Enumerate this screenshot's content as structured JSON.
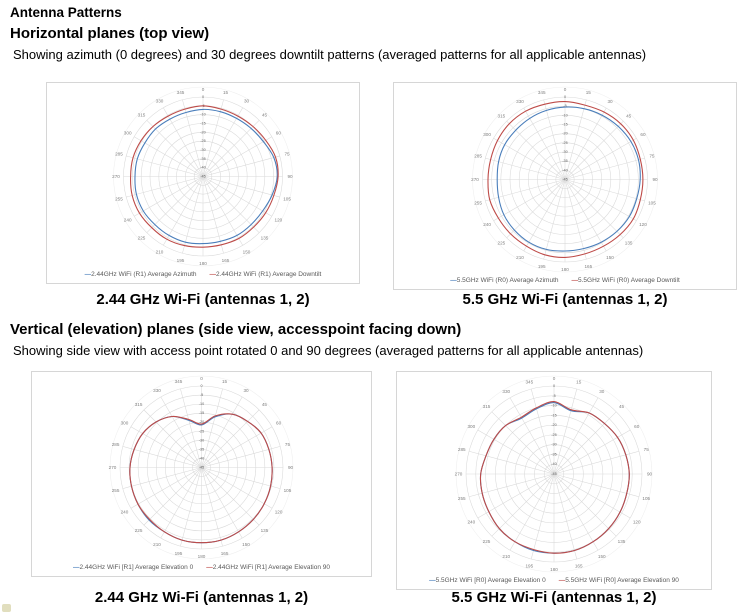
{
  "document_title": "Antenna Patterns",
  "sections": [
    {
      "heading": "Horizontal planes (top view)",
      "description": "Showing azimuth (0 degrees) and 30 degrees downtilt patterns (averaged patterns for all applicable antennas)",
      "captions": [
        "2.44 GHz Wi-Fi (antennas 1, 2)",
        "5.5 GHz Wi-Fi (antennas 1, 2)"
      ]
    },
    {
      "heading": "Vertical (elevation) planes (side view, accesspoint facing down)",
      "description": "Showing side view with access point rotated 0 and 90 degrees (averaged patterns for all applicable antennas)",
      "captions": [
        "2.44 GHz Wi-Fi (antennas 1, 2)",
        "5.5 GHz Wi-Fi (antennas 1, 2)"
      ]
    }
  ],
  "colors": {
    "series_blue": "#4a7ebb",
    "series_red": "#be4b48",
    "grid": "#d9d9d9",
    "outer_ring": "#efefef",
    "axis_text": "#808080",
    "radial_text": "#666666",
    "legend_text": "#595959",
    "box_border": "#d6d6d6",
    "corner_artifact": "#d9d6ae"
  },
  "chart_data": [
    {
      "type": "line",
      "subtype": "polar-radar",
      "position": "horizontal-2.44GHz",
      "angular_tick_step_deg": 15,
      "angles_deg": [
        0,
        15,
        30,
        45,
        60,
        75,
        90,
        105,
        120,
        135,
        150,
        165,
        180,
        195,
        210,
        225,
        240,
        255,
        270,
        285,
        300,
        315,
        330,
        345
      ],
      "radial_axis": {
        "min_db": -45,
        "max_db": 0,
        "ring_step_db": 5
      },
      "legend_position": "bottom",
      "series": [
        {
          "name": "2.44GHz WiFi (R1) Average Azimuth",
          "color": "#4a7ebb",
          "values_db": [
            -7,
            -7,
            -7,
            -6.5,
            -5.5,
            -3.5,
            -3,
            -4.5,
            -6,
            -6.5,
            -6.5,
            -7,
            -7,
            -6.5,
            -6.5,
            -6.5,
            -6,
            -6,
            -6.5,
            -6.5,
            -7,
            -7,
            -7.5,
            -7.5
          ]
        },
        {
          "name": "2.44GHz WiFi (R1) Average Downtilt",
          "color": "#be4b48",
          "values_db": [
            -5,
            -5.5,
            -5.5,
            -5,
            -4,
            -2.5,
            -2.5,
            -3.5,
            -4,
            -4.5,
            -4.5,
            -5,
            -5,
            -4.5,
            -4,
            -4,
            -3.5,
            -3.5,
            -4,
            -4,
            -4.5,
            -5,
            -5.5,
            -5.5
          ]
        }
      ]
    },
    {
      "type": "line",
      "subtype": "polar-radar",
      "position": "horizontal-5.5GHz",
      "angular_tick_step_deg": 15,
      "angles_deg": [
        0,
        15,
        30,
        45,
        60,
        75,
        90,
        105,
        120,
        135,
        150,
        165,
        180,
        195,
        210,
        225,
        240,
        255,
        270,
        285,
        300,
        315,
        330,
        345
      ],
      "radial_axis": {
        "min_db": -45,
        "max_db": 0,
        "ring_step_db": 5
      },
      "legend_position": "bottom",
      "series": [
        {
          "name": "5.5GHz WiFi (R0) Average Azimuth",
          "color": "#4a7ebb",
          "values_db": [
            -5.5,
            -5,
            -4.5,
            -4,
            -3.5,
            -3.5,
            -4,
            -4.5,
            -4.5,
            -5,
            -5.5,
            -6,
            -6,
            -5.5,
            -5.5,
            -6,
            -6.5,
            -7.5,
            -8,
            -7.5,
            -7,
            -7,
            -6.5,
            -6
          ]
        },
        {
          "name": "5.5GHz WiFi (R0) Average Downtilt",
          "color": "#be4b48",
          "values_db": [
            -2.5,
            -3,
            -2.5,
            -2,
            -2,
            -2.5,
            -2.5,
            -2.5,
            -2,
            -2.5,
            -3,
            -3,
            -2.5,
            -2.5,
            -3,
            -3,
            -3,
            -2.5,
            -3,
            -3,
            -2.5,
            -2,
            -2,
            -2.5
          ]
        }
      ]
    },
    {
      "type": "line",
      "subtype": "polar-radar",
      "position": "vertical-2.44GHz",
      "angular_tick_step_deg": 15,
      "angles_deg": [
        0,
        15,
        30,
        45,
        60,
        75,
        90,
        105,
        120,
        135,
        150,
        165,
        180,
        195,
        210,
        225,
        240,
        255,
        270,
        285,
        300,
        315,
        330,
        345
      ],
      "radial_axis": {
        "min_db": -45,
        "max_db": 0,
        "ring_step_db": 5
      },
      "legend_position": "bottom",
      "series": [
        {
          "name": "2.44GHz WiFi [R1] Average Elevation 0",
          "color": "#4a7ebb",
          "values_db": [
            -21.5,
            -16,
            -11,
            -9,
            -7,
            -6.5,
            -6,
            -5.5,
            -5,
            -4.5,
            -4,
            -3.5,
            -3.5,
            -3.5,
            -4,
            -4,
            -4.5,
            -5,
            -5.5,
            -6.5,
            -7.5,
            -9.5,
            -12.5,
            -18
          ]
        },
        {
          "name": "2.44GHz WiFi [R1] Average Elevation 90",
          "color": "#be4b48",
          "values_db": [
            -21,
            -15.5,
            -11,
            -9,
            -7,
            -6.5,
            -6,
            -5.5,
            -5,
            -4.5,
            -4,
            -3.5,
            -3.5,
            -3.5,
            -4,
            -4.5,
            -4.5,
            -5,
            -5.5,
            -6.5,
            -7.5,
            -9.5,
            -12.5,
            -17.5
          ]
        }
      ]
    },
    {
      "type": "line",
      "subtype": "polar-radar",
      "position": "vertical-5.5GHz",
      "angular_tick_step_deg": 15,
      "angles_deg": [
        0,
        15,
        30,
        45,
        60,
        75,
        90,
        105,
        120,
        135,
        150,
        165,
        180,
        195,
        210,
        225,
        240,
        255,
        270,
        285,
        300,
        315,
        330,
        345
      ],
      "radial_axis": {
        "min_db": -45,
        "max_db": 0,
        "ring_step_db": 5
      },
      "legend_position": "bottom",
      "series": [
        {
          "name": "5.5GHz WiFi [R0] Average Elevation 0",
          "color": "#4a7ebb",
          "values_db": [
            -8.5,
            -11.5,
            -9,
            -8.5,
            -7.5,
            -7,
            -6.5,
            -6.5,
            -6,
            -5.5,
            -5,
            -4.5,
            -4.5,
            -4.5,
            -5,
            -5.5,
            -6.5,
            -7,
            -7.5,
            -9,
            -9.5,
            -10,
            -12,
            -10.5
          ]
        },
        {
          "name": "5.5GHz WiFi [R0] Average Elevation 90",
          "color": "#be4b48",
          "values_db": [
            -8,
            -11,
            -9,
            -8.5,
            -7.5,
            -7,
            -6.5,
            -6.5,
            -6,
            -5.5,
            -5,
            -4.5,
            -4.5,
            -5,
            -5,
            -5.5,
            -6.5,
            -7,
            -7.5,
            -9,
            -9.5,
            -10,
            -11.5,
            -10
          ]
        }
      ]
    }
  ]
}
